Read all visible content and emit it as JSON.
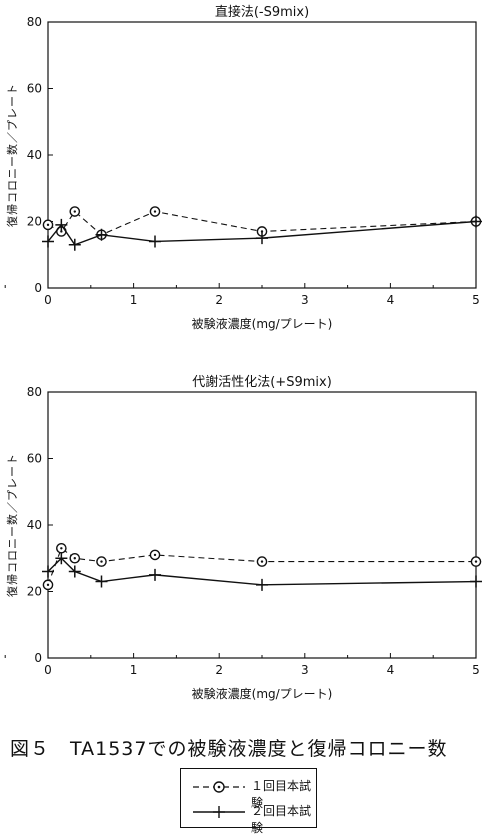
{
  "figure_caption": "図５　TA1537での被験液濃度と復帰コロニー数",
  "legend": [
    {
      "marker": "circle-dot",
      "line": "dashed",
      "label": "１回目本試験"
    },
    {
      "marker": "plus",
      "line": "solid",
      "label": "２回目本試験"
    }
  ],
  "chart_data": [
    {
      "type": "line",
      "title": "直接法(-S9mix)",
      "xlabel": "被験液濃度(mg/プレート)",
      "ylabel": "復帰コロニー数／プレート",
      "xlim": [
        0,
        5
      ],
      "ylim": [
        0,
        80
      ],
      "xticks": [
        "0",
        "1",
        "2",
        "3",
        "4",
        "5"
      ],
      "yticks": [
        "0",
        "20",
        "40",
        "60",
        "80"
      ],
      "grid": false,
      "series": [
        {
          "name": "１回目本試験",
          "x": [
            0,
            0.156,
            0.313,
            0.625,
            1.25,
            2.5,
            5
          ],
          "y": [
            19,
            17,
            23,
            16,
            23,
            17,
            20
          ]
        },
        {
          "name": "２回目本試験",
          "x": [
            0,
            0.156,
            0.313,
            0.625,
            1.25,
            2.5,
            5
          ],
          "y": [
            14,
            19,
            13,
            16,
            14,
            15,
            20
          ]
        }
      ]
    },
    {
      "type": "line",
      "title": "代謝活性化法(+S9mix)",
      "xlabel": "被験液濃度(mg/プレート)",
      "ylabel": "復帰コロニー数／プレート",
      "xlim": [
        0,
        5
      ],
      "ylim": [
        0,
        80
      ],
      "xticks": [
        "0",
        "1",
        "2",
        "3",
        "4",
        "5"
      ],
      "yticks": [
        "0",
        "20",
        "40",
        "60",
        "80"
      ],
      "grid": false,
      "series": [
        {
          "name": "１回目本試験",
          "x": [
            0,
            0.156,
            0.313,
            0.625,
            1.25,
            2.5,
            5
          ],
          "y": [
            22,
            33,
            30,
            29,
            31,
            29,
            29
          ]
        },
        {
          "name": "２回目本試験",
          "x": [
            0,
            0.156,
            0.313,
            0.625,
            1.25,
            2.5,
            5
          ],
          "y": [
            26,
            30,
            26,
            23,
            25,
            22,
            23
          ]
        }
      ]
    }
  ]
}
